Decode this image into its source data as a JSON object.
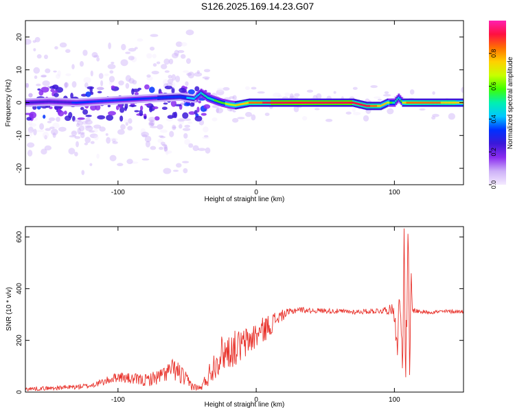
{
  "title": "S126.2025.169.14.23.G07",
  "chart_data": [
    {
      "type": "heatmap",
      "xlabel": "Height of straight line (km)",
      "ylabel": "Frequency (Hz)",
      "xlim": [
        -167,
        150
      ],
      "ylim": [
        -25,
        25
      ],
      "xticks": [
        -100,
        0,
        100
      ],
      "yticks": [
        -20,
        -10,
        0,
        10,
        20
      ],
      "grid": false,
      "colorbar": {
        "label": "Normalized spectral amplitude",
        "range": [
          0,
          1
        ],
        "ticks": [
          0.0,
          0.2,
          0.4,
          0.6,
          0.8
        ],
        "tick_labels": [
          "0.0",
          "0.2",
          "0.4",
          "0.6",
          "0.8"
        ],
        "colormap": [
          "#f4eaff",
          "#cdb0f8",
          "#8a2cf0",
          "#3b18d8",
          "#0030ff",
          "#00c8ff",
          "#00f0b0",
          "#40ff00",
          "#c8ff00",
          "#ffd000",
          "#ff7000",
          "#ff1040",
          "#ff20b0"
        ]
      },
      "ridge": {
        "x": [
          -167,
          -150,
          -130,
          -110,
          -90,
          -70,
          -55,
          -45,
          -40,
          -35,
          -30,
          -25,
          -20,
          -15,
          -10,
          -5,
          0,
          10,
          20,
          40,
          60,
          70,
          75,
          80,
          85,
          90,
          95,
          100,
          103,
          106,
          110,
          130,
          150
        ],
        "y": [
          0,
          0.3,
          0,
          0.5,
          1.0,
          1.5,
          1.8,
          1.2,
          3.0,
          1.5,
          0.7,
          0,
          -0.5,
          -0.8,
          -0.4,
          0,
          0,
          0,
          0,
          0,
          0,
          0,
          -0.5,
          -1.0,
          -1.0,
          -1.0,
          0,
          0,
          1.5,
          0,
          0,
          0,
          0
        ],
        "amplitude": [
          0.25,
          0.25,
          0.3,
          0.3,
          0.3,
          0.35,
          0.35,
          0.4,
          0.45,
          0.5,
          0.55,
          0.6,
          0.65,
          0.7,
          0.75,
          0.8,
          0.85,
          0.9,
          0.95,
          0.95,
          0.95,
          0.9,
          0.9,
          0.9,
          0.85,
          0.75,
          0.7,
          0.5,
          0.45,
          0.7,
          0.85,
          0.8,
          0.75
        ]
      }
    },
    {
      "type": "line",
      "xlabel": "Height of straight line (km)",
      "ylabel": "SNR (10 * v/v)",
      "xlim": [
        -167,
        150
      ],
      "ylim": [
        0,
        640
      ],
      "xticks": [
        -100,
        0,
        100
      ],
      "yticks": [
        0,
        200,
        400,
        600
      ],
      "grid": false,
      "series": [
        {
          "color": "#e8312a",
          "x": [
            -167,
            -150,
            -130,
            -120,
            -110,
            -100,
            -90,
            -80,
            -70,
            -60,
            -55,
            -50,
            -45,
            -40,
            -35,
            -30,
            -25,
            -20,
            -15,
            -10,
            -5,
            0,
            5,
            10,
            15,
            20,
            25,
            30,
            40,
            50,
            60,
            70,
            80,
            90,
            98,
            100,
            102,
            104,
            106,
            107,
            108,
            109,
            110,
            111,
            112,
            113,
            115,
            120,
            130,
            140,
            150
          ],
          "y": [
            12,
            15,
            20,
            25,
            40,
            60,
            50,
            45,
            60,
            90,
            70,
            40,
            20,
            15,
            60,
            110,
            150,
            160,
            170,
            180,
            200,
            220,
            240,
            260,
            285,
            300,
            310,
            320,
            315,
            315,
            312,
            310,
            312,
            315,
            320,
            310,
            200,
            350,
            150,
            560,
            80,
            300,
            600,
            40,
            450,
            320,
            315,
            310,
            310,
            312,
            312
          ],
          "noise_amplitude": [
            8,
            8,
            10,
            10,
            14,
            20,
            22,
            25,
            30,
            40,
            45,
            30,
            15,
            10,
            40,
            60,
            70,
            70,
            70,
            65,
            60,
            55,
            50,
            45,
            30,
            20,
            15,
            12,
            10,
            10,
            10,
            10,
            10,
            12,
            20,
            40,
            80,
            80,
            80,
            80,
            80,
            80,
            80,
            80,
            60,
            15,
            10,
            8,
            8,
            8,
            8
          ]
        }
      ]
    }
  ]
}
